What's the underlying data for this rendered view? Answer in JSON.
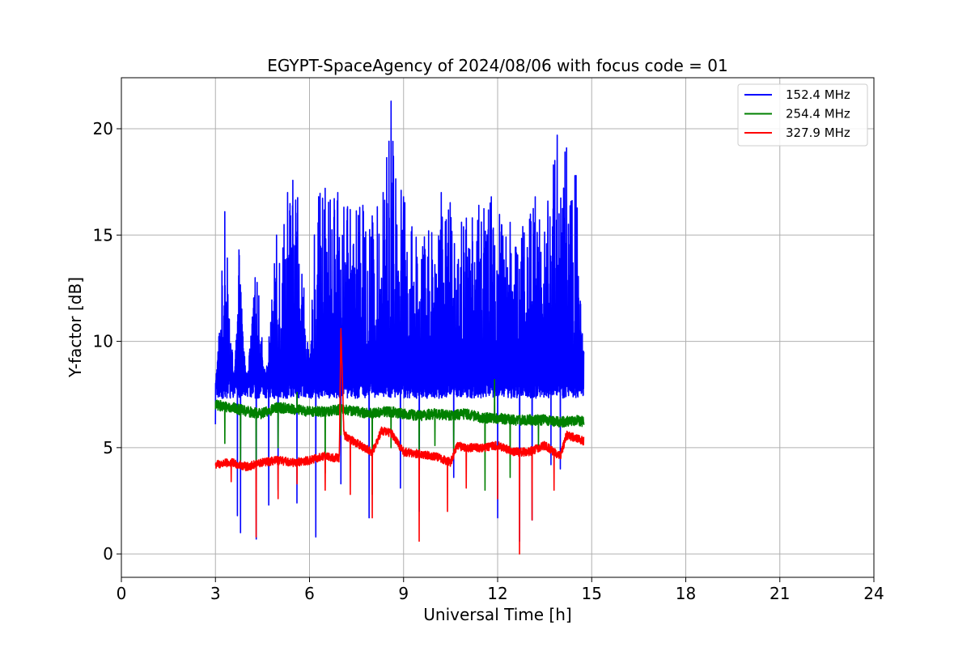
{
  "chart_data": {
    "type": "line",
    "title": "EGYPT-SpaceAgency of 2024/08/06 with focus code = 01",
    "xlabel": "Universal Time [h]",
    "ylabel": "Y-factor [dB]",
    "xlim": [
      0,
      24
    ],
    "ylim": [
      -1.1,
      22.4
    ],
    "x_ticks": [
      0,
      3,
      6,
      9,
      12,
      15,
      18,
      21,
      24
    ],
    "y_ticks": [
      0,
      5,
      10,
      15,
      20
    ],
    "grid": true,
    "legend_position": "top-right",
    "x_range_of_data": [
      3.0,
      14.75
    ],
    "series": [
      {
        "name": "152.4 MHz",
        "color": "#0000ff",
        "baseline_approx": 8.5,
        "x": [
          3.0,
          3.3,
          3.6,
          3.75,
          4.0,
          4.3,
          4.6,
          4.95,
          5.3,
          5.6,
          6.0,
          6.2,
          6.5,
          6.9,
          7.3,
          7.7,
          8.0,
          8.35,
          8.6,
          9.0,
          9.4,
          9.8,
          10.2,
          10.6,
          11.0,
          11.4,
          11.8,
          12.0,
          12.4,
          12.8,
          13.2,
          13.6,
          13.9,
          14.2,
          14.5,
          14.75
        ],
        "values": [
          7.5,
          16.1,
          8.0,
          14.3,
          7.9,
          13.8,
          8.2,
          15.0,
          17.0,
          18.3,
          8.8,
          16.8,
          17.2,
          17.0,
          16.2,
          16.4,
          15.9,
          17.0,
          21.3,
          16.8,
          14.9,
          15.2,
          17.0,
          16.5,
          15.8,
          16.4,
          16.8,
          16.2,
          15.6,
          15.4,
          16.8,
          16.6,
          19.7,
          19.1,
          17.8,
          9.5
        ],
        "minima_x": [
          3.0,
          3.7,
          3.8,
          4.3,
          4.7,
          5.0,
          5.6,
          6.2,
          7.0,
          7.9,
          8.9,
          9.5,
          10.6,
          12.0,
          12.7,
          13.1,
          13.7,
          14.0
        ],
        "minima_values": [
          6.1,
          1.8,
          1.0,
          0.7,
          2.3,
          3.0,
          2.4,
          0.8,
          3.3,
          1.7,
          3.1,
          2.0,
          3.6,
          1.7,
          0.6,
          1.6,
          4.2,
          4.0
        ]
      },
      {
        "name": "254.4 MHz",
        "color": "#008000",
        "baseline_approx": 6.6,
        "x": [
          3.0,
          3.5,
          4.0,
          4.5,
          5.0,
          5.5,
          6.0,
          6.5,
          7.0,
          7.5,
          8.0,
          8.5,
          9.0,
          9.5,
          10.0,
          10.5,
          11.0,
          11.5,
          12.0,
          12.5,
          13.0,
          13.5,
          14.0,
          14.5,
          14.75
        ],
        "values": [
          7.0,
          6.9,
          6.7,
          6.6,
          6.9,
          6.8,
          6.7,
          6.7,
          6.8,
          6.7,
          6.6,
          6.7,
          6.6,
          6.5,
          6.6,
          6.5,
          6.6,
          6.4,
          6.4,
          6.3,
          6.3,
          6.3,
          6.2,
          6.3,
          6.2
        ],
        "minima_x": [
          3.3,
          3.8,
          4.3,
          5.0,
          5.6,
          6.5,
          7.0,
          8.0,
          8.6,
          9.5,
          10.0,
          10.6,
          11.6,
          12.4,
          13.3
        ],
        "minima_values": [
          5.2,
          4.4,
          4.2,
          5.0,
          4.6,
          3.8,
          5.6,
          2.8,
          5.0,
          4.4,
          5.1,
          4.8,
          3.0,
          3.6,
          4.9
        ],
        "maxima_x": [
          5.6,
          11.9
        ],
        "maxima_values": [
          7.6,
          8.2
        ]
      },
      {
        "name": "327.9 MHz",
        "color": "#ff0000",
        "baseline_approx": 4.6,
        "x": [
          3.0,
          3.5,
          4.0,
          4.5,
          5.0,
          5.5,
          6.0,
          6.5,
          6.95,
          7.0,
          7.1,
          7.5,
          8.0,
          8.3,
          8.6,
          9.0,
          9.5,
          10.0,
          10.5,
          10.7,
          11.0,
          11.5,
          12.0,
          12.5,
          13.0,
          13.5,
          14.0,
          14.2,
          14.75
        ],
        "values": [
          4.2,
          4.3,
          4.1,
          4.3,
          4.4,
          4.3,
          4.4,
          4.6,
          4.5,
          10.6,
          5.6,
          5.2,
          4.8,
          5.8,
          5.7,
          4.8,
          4.7,
          4.6,
          4.3,
          5.1,
          5.0,
          5.0,
          5.1,
          4.8,
          4.8,
          5.1,
          4.6,
          5.6,
          5.3
        ],
        "minima_x": [
          3.5,
          4.3,
          5.0,
          5.6,
          6.5,
          7.3,
          8.0,
          9.5,
          10.4,
          11.0,
          12.0,
          12.7,
          13.1,
          13.8
        ],
        "minima_values": [
          3.4,
          0.8,
          2.6,
          3.3,
          3.0,
          2.8,
          1.7,
          0.6,
          2.0,
          3.1,
          2.6,
          0.0,
          1.6,
          3.0
        ]
      }
    ]
  }
}
